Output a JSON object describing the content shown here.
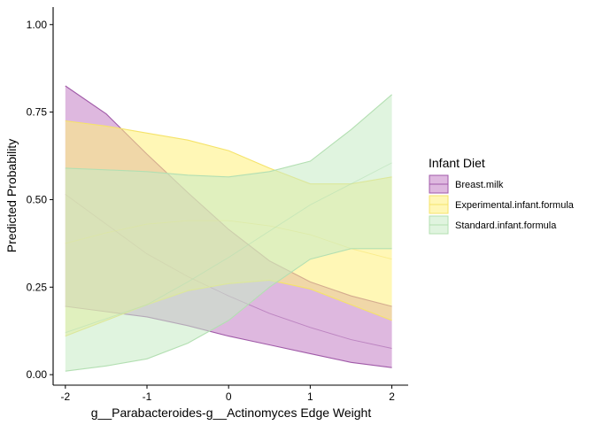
{
  "chart_data": {
    "type": "area",
    "title": "",
    "xlabel": "g__Parabacteroides-g__Actinomyces Edge Weight",
    "ylabel": "Predicted Probability",
    "xlim": [
      -2.15,
      2.2
    ],
    "ylim": [
      -0.03,
      1.05
    ],
    "x_ticks": [
      -2,
      -1,
      0,
      1,
      2
    ],
    "x_tick_labels": [
      "-2",
      "-1",
      "0",
      "1",
      "2"
    ],
    "y_ticks": [
      0,
      0.25,
      0.5,
      0.75,
      1.0
    ],
    "y_tick_labels": [
      "0.00",
      "0.25",
      "0.50",
      "0.75",
      "1.00"
    ],
    "grid": false,
    "legend": {
      "title": "Infant Diet",
      "placement": "right"
    },
    "x": [
      -2,
      -1.5,
      -1,
      -0.5,
      0,
      0.5,
      1,
      1.5,
      2
    ],
    "series": [
      {
        "name": "Breast.milk",
        "fill": "#c27ec5",
        "line": "#a05aa8",
        "upper": [
          0.825,
          0.745,
          0.63,
          0.52,
          0.415,
          0.325,
          0.265,
          0.225,
          0.195
        ],
        "mid": [
          0.515,
          0.43,
          0.345,
          0.28,
          0.225,
          0.175,
          0.135,
          0.1,
          0.075
        ],
        "lower": [
          0.195,
          0.18,
          0.165,
          0.14,
          0.11,
          0.085,
          0.06,
          0.035,
          0.02
        ]
      },
      {
        "name": "Experimental.infant.formula",
        "fill": "#fff17a",
        "line": "#f5e36a",
        "upper": [
          0.725,
          0.71,
          0.69,
          0.67,
          0.64,
          0.59,
          0.545,
          0.545,
          0.565
        ],
        "mid": [
          0.375,
          0.405,
          0.43,
          0.44,
          0.44,
          0.425,
          0.4,
          0.36,
          0.33
        ],
        "lower": [
          0.11,
          0.155,
          0.2,
          0.24,
          0.26,
          0.27,
          0.245,
          0.2,
          0.155
        ]
      },
      {
        "name": "Standard.infant.formula",
        "fill": "#c6ebc5",
        "line": "#b3dfb2",
        "upper": [
          0.59,
          0.585,
          0.58,
          0.57,
          0.565,
          0.58,
          0.61,
          0.7,
          0.8
        ],
        "mid": [
          0.12,
          0.16,
          0.2,
          0.265,
          0.335,
          0.41,
          0.485,
          0.545,
          0.605
        ],
        "lower": [
          0.01,
          0.025,
          0.045,
          0.09,
          0.155,
          0.25,
          0.33,
          0.36,
          0.36
        ]
      }
    ]
  }
}
